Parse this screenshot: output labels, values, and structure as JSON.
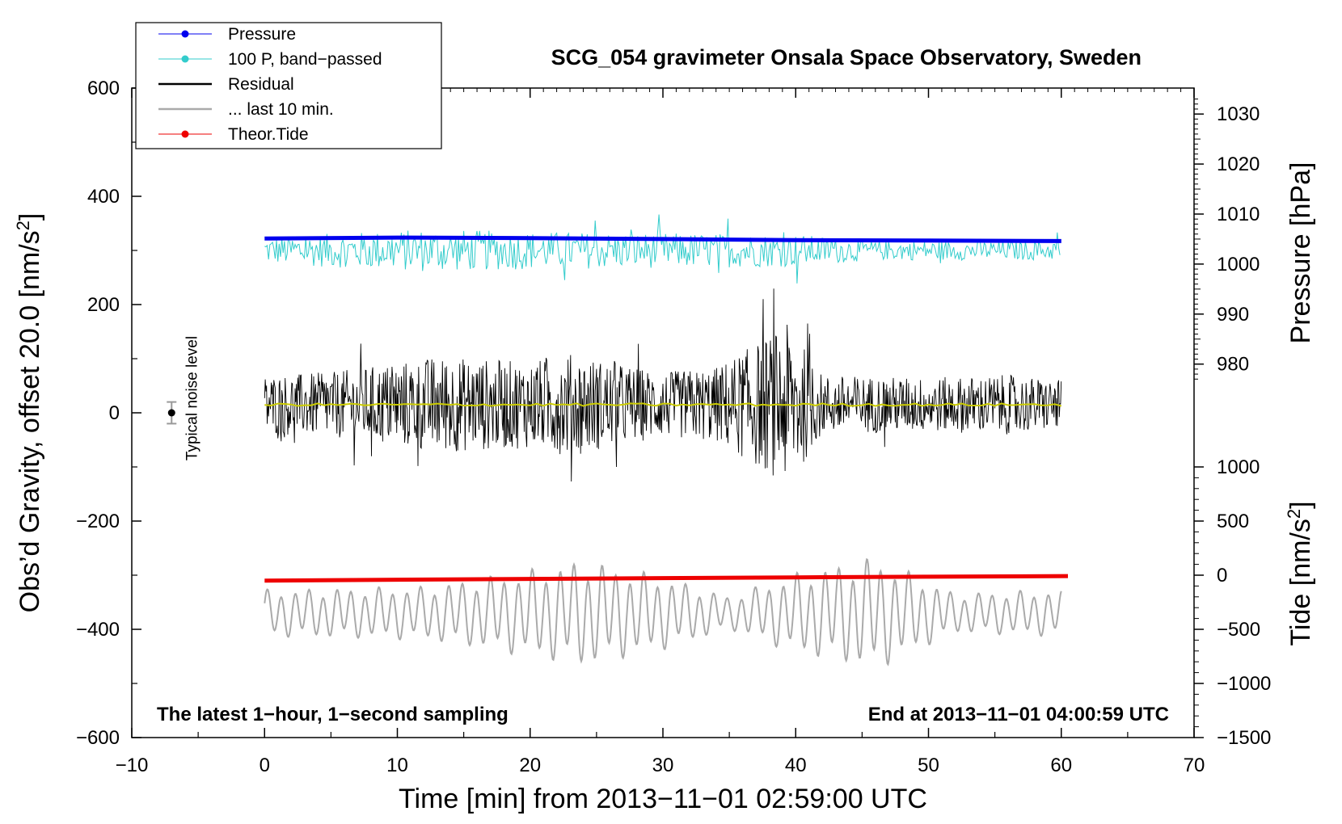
{
  "chart_data": {
    "type": "line",
    "title": "SCG_054 gravimeter Onsala Space Observatory, Sweden",
    "xlabel": "Time [min] from 2013−11−01 02:59:00 UTC",
    "ylabel": "Obs’d Gravity, offset 20.0 [nm/s",
    "ylabel_sup": "2",
    "ylabel_close": "]",
    "xlim": [
      -10,
      70
    ],
    "ylim": [
      -600,
      600
    ],
    "x_ticks": [
      -10,
      0,
      10,
      20,
      30,
      40,
      50,
      60,
      70
    ],
    "x_tick_labels": [
      "−10",
      "0",
      "10",
      "20",
      "30",
      "40",
      "50",
      "60",
      "70"
    ],
    "y_ticks": [
      600,
      400,
      200,
      0,
      -200,
      -400,
      -600
    ],
    "y_tick_labels": [
      "600",
      "400",
      "200",
      "0",
      "−200",
      "−400",
      "−600"
    ],
    "pressure_axis": {
      "label": "Pressure [hPa]",
      "ticks": [
        1030,
        1020,
        1010,
        1000,
        990,
        980
      ],
      "tick_labels": [
        "1030",
        "1020",
        "1010",
        "1000",
        "990",
        "980"
      ],
      "left_value_map": {
        "1030": 552,
        "980": 90
      }
    },
    "tide_axis": {
      "label": "Tide [nm/s",
      "label_sup": "2",
      "label_close": "]",
      "ticks": [
        1000,
        500,
        0,
        -500,
        -1000,
        -1500
      ],
      "tick_labels": [
        "1000",
        "500",
        "0",
        "−500",
        "−1000",
        "−1500"
      ],
      "left_value_map": {
        "1000": -100,
        "-1500": -600
      }
    },
    "series": [
      {
        "name": "Pressure",
        "color": "#0000ee",
        "x": [
          0,
          10,
          20,
          30,
          40,
          50,
          60
        ],
        "pressure_hPa": [
          1005.1,
          1005.3,
          1005.2,
          1005.0,
          1004.8,
          1004.7,
          1004.6
        ]
      },
      {
        "name": "100 P, band−passed",
        "color": "#33cccc",
        "baseline": 300,
        "amplitude_envelope": [
          [
            0,
            25
          ],
          [
            12,
            40
          ],
          [
            20,
            35
          ],
          [
            40,
            30
          ],
          [
            46,
            18
          ],
          [
            60,
            18
          ]
        ]
      },
      {
        "name": "Residual",
        "color": "#000000",
        "baseline": 15,
        "amplitude_envelope": [
          [
            0,
            55
          ],
          [
            5,
            60
          ],
          [
            13,
            90
          ],
          [
            20,
            80
          ],
          [
            23,
            95
          ],
          [
            30,
            60
          ],
          [
            34,
            70
          ],
          [
            39.5,
            150
          ],
          [
            42,
            55
          ],
          [
            50,
            50
          ],
          [
            56,
            55
          ],
          [
            60,
            45
          ]
        ]
      },
      {
        "name": "... last 10 min.",
        "color": "#aaaaaa",
        "baseline": -370,
        "amplitude_envelope": [
          [
            0,
            35
          ],
          [
            12,
            40
          ],
          [
            20,
            65
          ],
          [
            24,
            80
          ],
          [
            30,
            55
          ],
          [
            35,
            25
          ],
          [
            40,
            60
          ],
          [
            46,
            85
          ],
          [
            52,
            30
          ],
          [
            60,
            35
          ]
        ]
      },
      {
        "name": "Theor.Tide",
        "color": "#ee0000",
        "x": [
          0,
          10,
          20,
          30,
          40,
          50,
          60.5
        ],
        "tide_nm_s2": [
          -50,
          -42,
          -34,
          -27,
          -20,
          -14,
          -8
        ]
      }
    ],
    "mean_line": {
      "color": "#cccc00",
      "value": 15
    },
    "noise_marker": {
      "label": "Typical noise level",
      "x": -7,
      "y": 0,
      "half_range": 20
    },
    "annotations": {
      "left": "The latest 1−hour, 1−second sampling",
      "right": "End at 2013−11−01 04:00:59 UTC"
    },
    "legend_position": "top-left"
  }
}
